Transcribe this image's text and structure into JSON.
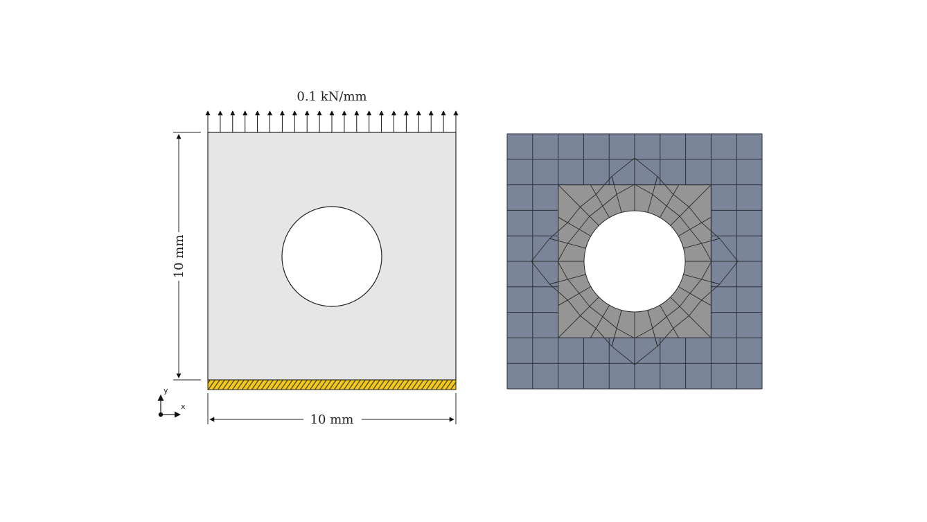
{
  "left_diagram": {
    "load_label": "0.1 kN/mm",
    "height_label": "10 mm",
    "width_label": "10 mm",
    "axis_y_label": "y",
    "axis_x_label": "x",
    "arrow_count": 21,
    "plate_color": "#e6e6e6",
    "support_color": "#f2c81a"
  },
  "right_diagram": {
    "grid_divisions": 10,
    "outer_mesh_color": "#7a8599",
    "inner_mesh_color": "#959595",
    "ring_segments": 24
  }
}
